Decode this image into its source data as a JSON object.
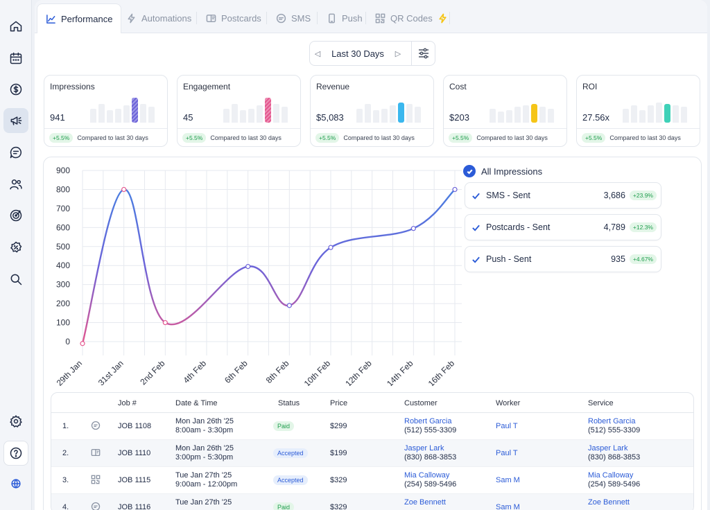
{
  "tabs": [
    {
      "label": "Performance",
      "icon": "trend-line-icon",
      "active": true
    },
    {
      "label": "Automations",
      "icon": "bolt-icon"
    },
    {
      "label": "Postcards",
      "icon": "postcard-icon"
    },
    {
      "label": "SMS",
      "icon": "sms-icon"
    },
    {
      "label": "Push",
      "icon": "phone-icon"
    },
    {
      "label": "QR Codes",
      "icon": "qr-icon"
    }
  ],
  "date_range": {
    "label": "Last 30 Days"
  },
  "kpis": [
    {
      "title": "Impressions",
      "value": "941",
      "change": "+5.5%",
      "compare": "Compared to last 30 days",
      "accent": "#6c63d9",
      "bars": [
        0.55,
        0.75,
        0.5,
        0.55,
        0.7,
        1.0,
        0.75,
        0.65
      ]
    },
    {
      "title": "Engagement",
      "value": "45",
      "change": "+5.5%",
      "compare": "Compared to last 30 days",
      "accent": "#e4578f",
      "bars": [
        0.55,
        0.75,
        0.5,
        0.55,
        0.7,
        1.0,
        0.75,
        0.65
      ]
    },
    {
      "title": "Revenue",
      "value": "$5,083",
      "change": "+5.5%",
      "compare": "Compared to last 30 days",
      "accent": "#3ab7ee",
      "bars": [
        0.55,
        0.75,
        0.5,
        0.55,
        0.7,
        0.8,
        0.75,
        0.65
      ]
    },
    {
      "title": "Cost",
      "value": "$203",
      "change": "+5.5%",
      "compare": "Compared to last 30 days",
      "accent": "#f5c518",
      "bars": [
        0.55,
        0.45,
        0.5,
        0.65,
        0.7,
        0.75,
        0.65,
        0.55
      ]
    },
    {
      "title": "ROI",
      "value": "27.56x",
      "change": "+5.5%",
      "compare": "Compared to last 30 days",
      "accent": "#3fd1b8",
      "bars": [
        0.55,
        0.7,
        0.5,
        0.7,
        0.8,
        0.75,
        0.7,
        0.65
      ]
    }
  ],
  "chart_data": {
    "type": "line",
    "x": [
      "29th Jan",
      "31st Jan",
      "2nd Feb",
      "4th Feb",
      "6th Feb",
      "8th Feb",
      "10th Feb",
      "12th Feb",
      "14th Feb",
      "16th Feb"
    ],
    "series": [
      {
        "name": "All Impressions",
        "points": [
          [
            "29th Jan",
            -10
          ],
          [
            "31st Jan",
            800
          ],
          [
            "2nd Feb",
            100
          ],
          [
            "6th Feb",
            395
          ],
          [
            "8th Feb",
            190
          ],
          [
            "10th Feb",
            495
          ],
          [
            "14th Feb",
            595
          ],
          [
            "16th Feb",
            800
          ]
        ]
      }
    ],
    "yticks": [
      900,
      800,
      700,
      600,
      500,
      400,
      300,
      200,
      100,
      0
    ],
    "ylim": [
      0,
      900
    ],
    "grid": true,
    "colors": [
      "#e4578f",
      "#6c63d9",
      "#4a7ee0"
    ]
  },
  "series_list": {
    "all_label": "All Impressions",
    "items": [
      {
        "name": "SMS - Sent",
        "value": "3,686",
        "change": "+23.9%"
      },
      {
        "name": "Postcards - Sent",
        "value": "4,789",
        "change": "+12.3%"
      },
      {
        "name": "Push - Sent",
        "value": "935",
        "change": "+4.67%"
      }
    ]
  },
  "table": {
    "headers": [
      "Job #",
      "Date & Time",
      "Status",
      "Price",
      "Customer",
      "Worker",
      "Service"
    ],
    "rows": [
      {
        "n": "1.",
        "icon": "sms-icon",
        "job": "JOB 1108",
        "date": "Mon Jan 26th '25",
        "time": "8:00am - 3:30pm",
        "status": "Paid",
        "price": "$299",
        "customer": "Robert Garcia",
        "cphone": "(512) 555-3309",
        "worker": "Paul T",
        "service": "Robert Garcia",
        "sphone": "(512) 555-3309"
      },
      {
        "n": "2.",
        "icon": "postcard-icon",
        "job": "JOB 1110",
        "date": "Mon Jan 26th '25",
        "time": "3:00pm - 5:30pm",
        "status": "Accepted",
        "price": "$199",
        "customer": "Jasper Lark",
        "cphone": "(830) 868-3853",
        "worker": "Paul T",
        "service": "Jasper Lark",
        "sphone": "(830) 868-3853"
      },
      {
        "n": "3.",
        "icon": "qr-icon",
        "job": "JOB 1115",
        "date": "Tue Jan 27th '25",
        "time": "9:00am - 12:00pm",
        "status": "Accepted",
        "price": "$329",
        "customer": "Mia Calloway",
        "cphone": "(254) 589-5496",
        "worker": "Sam M",
        "service": "Mia Calloway",
        "sphone": "(254) 589-5496"
      },
      {
        "n": "4.",
        "icon": "sms-icon",
        "job": "JOB 1116",
        "date": "Tue Jan 27th '25",
        "time": "",
        "status": "Paid",
        "price": "$329",
        "customer": "Zoe Bennett",
        "cphone": "",
        "worker": "Sam M",
        "service": "Zoe Bennett",
        "sphone": ""
      }
    ]
  }
}
